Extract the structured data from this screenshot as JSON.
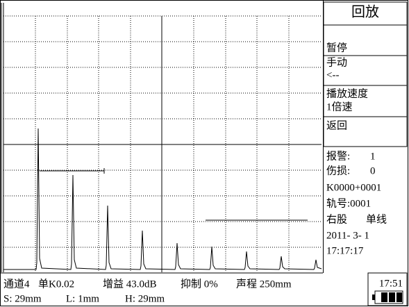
{
  "header": {
    "title": "回放"
  },
  "menu": [
    {
      "label": "暂停"
    },
    {
      "label": "手动",
      "sub": "<--"
    },
    {
      "label": "播放速度",
      "sub": "1倍速"
    },
    {
      "label": "返回"
    }
  ],
  "status": {
    "alarm_label": "报警:",
    "alarm": "1",
    "damage_label": "伤损:",
    "damage": "0",
    "mileage": "K0000+0001",
    "track": "轨号:0001",
    "rail": "右股",
    "line": "单线",
    "date": "2011- 3- 1",
    "time": "17:17:17"
  },
  "footer": {
    "channel": "通道4",
    "probe": "单K0.02",
    "gain": "增益 43.0dB",
    "suppress": "抑制 0%",
    "range": "声程 250mm",
    "s": "S: 29mm",
    "l": "L: 1mm",
    "h": "H: 29mm",
    "clock": "17:51"
  }
}
